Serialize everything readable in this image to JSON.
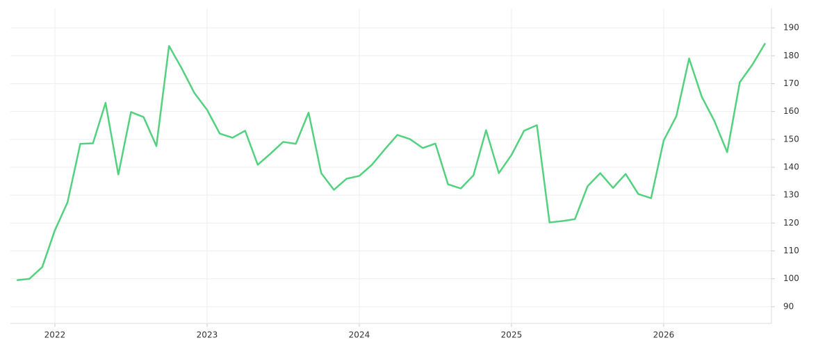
{
  "chart_data": {
    "type": "line",
    "x": [
      2021.75,
      2021.833,
      2021.917,
      2022.0,
      2022.083,
      2022.167,
      2022.25,
      2022.333,
      2022.417,
      2022.5,
      2022.583,
      2022.667,
      2022.75,
      2022.833,
      2022.917,
      2023.0,
      2023.083,
      2023.167,
      2023.25,
      2023.333,
      2023.417,
      2023.5,
      2023.583,
      2023.667,
      2023.75,
      2023.833,
      2023.917,
      2024.0,
      2024.083,
      2024.167,
      2024.25,
      2024.333,
      2024.417,
      2024.5,
      2024.583,
      2024.667,
      2024.75,
      2024.833,
      2024.917,
      2025.0,
      2025.083,
      2025.167,
      2025.25,
      2025.333,
      2025.417,
      2025.5,
      2025.583,
      2025.667,
      2025.75,
      2025.833,
      2025.917,
      2026.0,
      2026.083,
      2026.167,
      2026.25,
      2026.333,
      2026.417,
      2026.5,
      2026.583,
      2026.667
    ],
    "series": [
      {
        "color": "#52d17f",
        "values": [
          99.5,
          100,
          104.2,
          117.4,
          127.4,
          148.4,
          148.6,
          163.1,
          137.4,
          159.8,
          158.0,
          147.6,
          183.5,
          175.5,
          166.6,
          160.6,
          152.1,
          150.6,
          153.1,
          140.9,
          144.9,
          149.1,
          148.4,
          159.6,
          137.9,
          131.9,
          135.9,
          136.9,
          140.9,
          146.4,
          151.6,
          150.1,
          146.9,
          148.5,
          133.9,
          132.4,
          137.1,
          153.3,
          137.9,
          144.4,
          153.1,
          155.1,
          120.2,
          120.7,
          121.4,
          133.2,
          137.9,
          132.6,
          137.6,
          130.4,
          128.9,
          149.6,
          158.3,
          179.0,
          165.3,
          156.6,
          145.4,
          170.5,
          176.8,
          184.5
        ]
      }
    ],
    "xlim": [
      2021.708,
      2026.708
    ],
    "xticks": [
      2022,
      2023,
      2024,
      2025,
      2026
    ],
    "ylim": [
      84,
      197
    ],
    "yticks": [
      90,
      100,
      110,
      120,
      130,
      140,
      150,
      160,
      170,
      180,
      190
    ],
    "grid": true
  }
}
